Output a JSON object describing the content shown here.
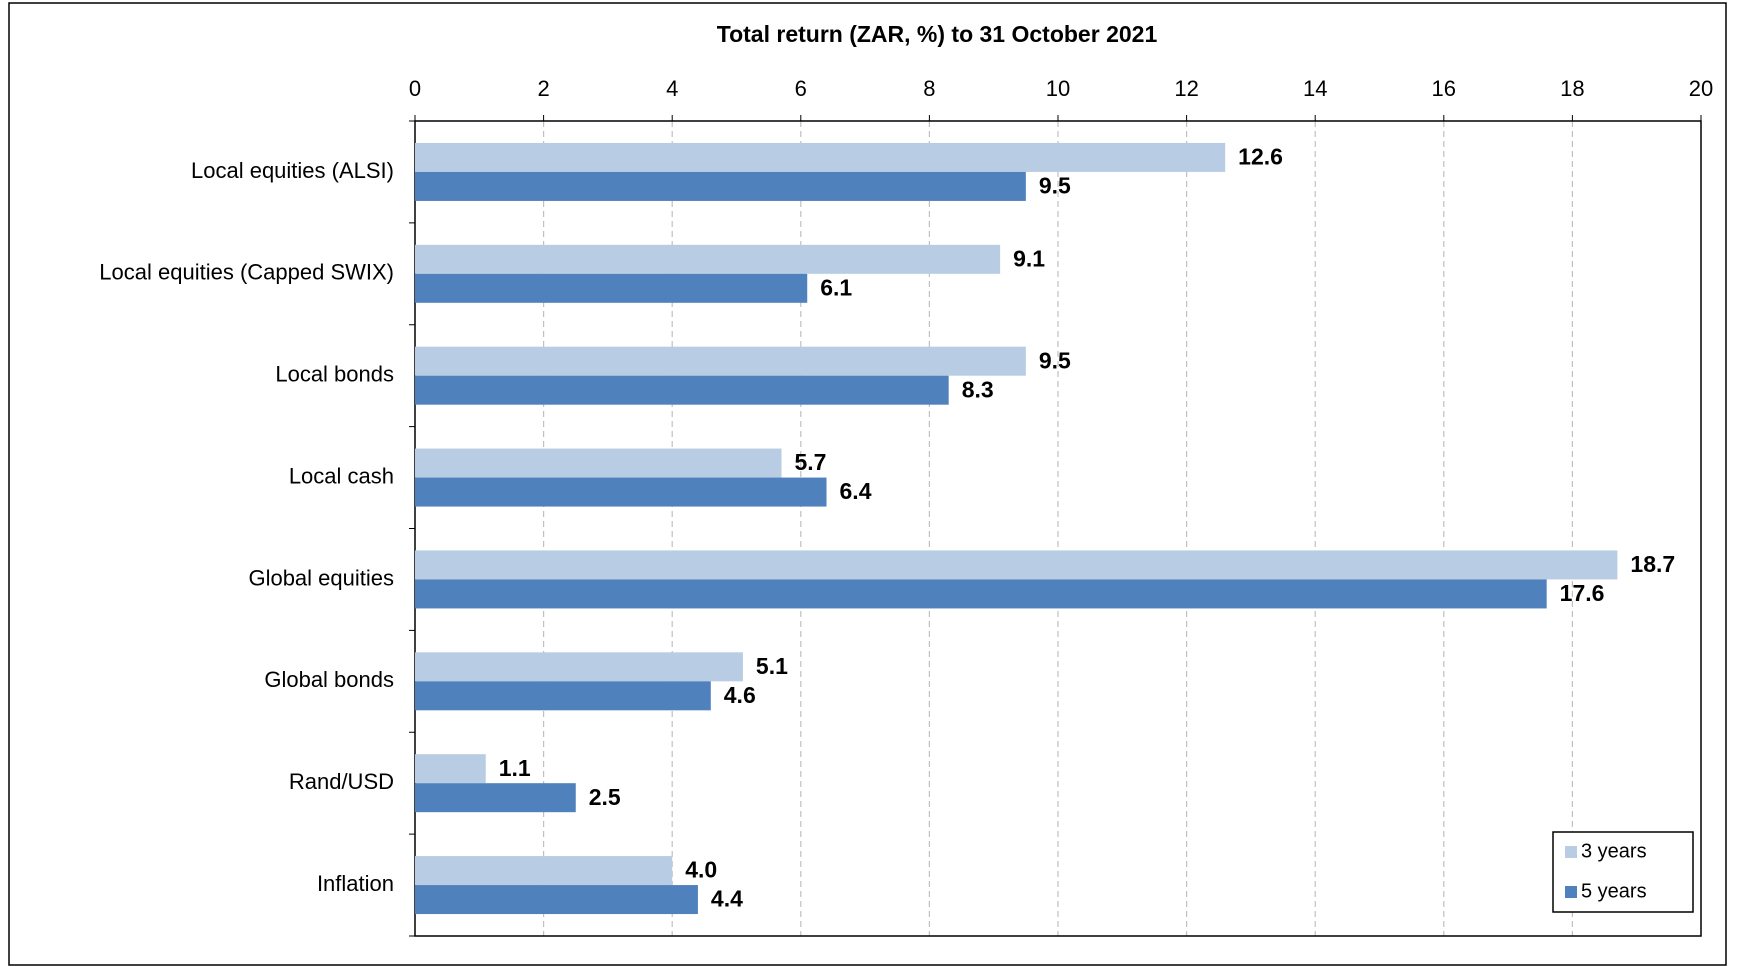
{
  "chart_data": {
    "type": "hbar",
    "title": "Total return (ZAR, %) to 31 October 2021",
    "categories": [
      "Local equities (ALSI)",
      "Local equities (Capped SWIX)",
      "Local bonds",
      "Local cash",
      "Global equities",
      "Global bonds",
      "Rand/USD",
      "Inflation"
    ],
    "series": [
      {
        "name": "3 years",
        "color": "#b8cce4",
        "values": [
          12.6,
          9.1,
          9.5,
          5.7,
          18.7,
          5.1,
          1.1,
          4.0
        ],
        "value_labels": [
          "12.6",
          "9.1",
          "9.5",
          "5.7",
          "18.7",
          "5.1",
          "1.1",
          "4.0"
        ]
      },
      {
        "name": "5 years",
        "color": "#4f81bd",
        "values": [
          9.5,
          6.1,
          8.3,
          6.4,
          17.6,
          4.6,
          2.5,
          4.4
        ]
      }
    ],
    "xlim": [
      0,
      20
    ],
    "xticks": [
      0,
      2,
      4,
      6,
      8,
      10,
      12,
      14,
      16,
      18,
      20
    ],
    "grid": true,
    "legend": "lower right"
  }
}
